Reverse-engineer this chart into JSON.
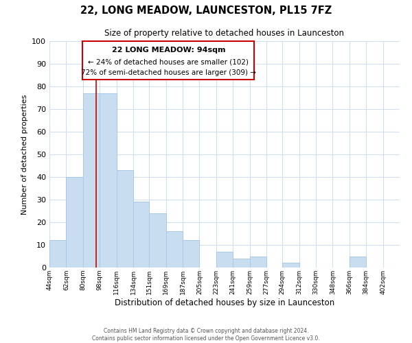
{
  "title": "22, LONG MEADOW, LAUNCESTON, PL15 7FZ",
  "subtitle": "Size of property relative to detached houses in Launceston",
  "xlabel": "Distribution of detached houses by size in Launceston",
  "ylabel": "Number of detached properties",
  "bar_color": "#c8ddf0",
  "bar_edge_color": "#a8c8e8",
  "bar_left_edges": [
    44,
    62,
    80,
    98,
    116,
    134,
    151,
    169,
    187,
    205,
    223,
    241,
    259,
    277,
    294,
    312,
    330,
    348,
    366,
    384
  ],
  "bar_widths": [
    18,
    18,
    18,
    18,
    18,
    17,
    18,
    18,
    18,
    18,
    18,
    18,
    18,
    17,
    18,
    18,
    18,
    18,
    18,
    18
  ],
  "bar_heights": [
    12,
    40,
    77,
    77,
    43,
    29,
    24,
    16,
    12,
    0,
    7,
    4,
    5,
    0,
    2,
    0,
    0,
    0,
    5,
    0
  ],
  "tick_labels": [
    "44sqm",
    "62sqm",
    "80sqm",
    "98sqm",
    "116sqm",
    "134sqm",
    "151sqm",
    "169sqm",
    "187sqm",
    "205sqm",
    "223sqm",
    "241sqm",
    "259sqm",
    "277sqm",
    "294sqm",
    "312sqm",
    "330sqm",
    "348sqm",
    "366sqm",
    "384sqm",
    "402sqm"
  ],
  "tick_positions": [
    44,
    62,
    80,
    98,
    116,
    134,
    151,
    169,
    187,
    205,
    223,
    241,
    259,
    277,
    294,
    312,
    330,
    348,
    366,
    384,
    402
  ],
  "property_line_x": 94,
  "property_line_color": "#cc0000",
  "annotation_line1": "22 LONG MEADOW: 94sqm",
  "annotation_line2": "← 24% of detached houses are smaller (102)",
  "annotation_line3": "72% of semi-detached houses are larger (309) →",
  "ylim": [
    0,
    100
  ],
  "xlim": [
    44,
    420
  ],
  "footer_line1": "Contains HM Land Registry data © Crown copyright and database right 2024.",
  "footer_line2": "Contains public sector information licensed under the Open Government Licence v3.0.",
  "background_color": "#ffffff",
  "grid_color": "#d0dff0"
}
